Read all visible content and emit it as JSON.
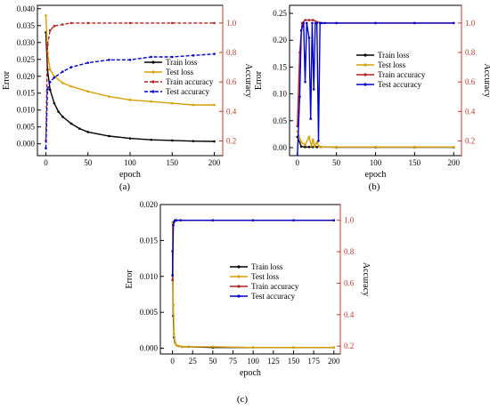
{
  "chart_data": [
    {
      "type": "line",
      "panel_label": "(a)",
      "xlabel": "epoch",
      "ylabel": "Error",
      "y2label": "Accuracy",
      "xlim": [
        -10,
        210
      ],
      "ylim": [
        -0.0035,
        0.041
      ],
      "y2lim": [
        0.1,
        1.12
      ],
      "xticks": [
        0,
        50,
        100,
        150,
        200
      ],
      "yticks": [
        0.0,
        0.005,
        0.01,
        0.015,
        0.02,
        0.025,
        0.03,
        0.035,
        0.04
      ],
      "ytick_labels": [
        "0.000",
        "0.005",
        "0.010",
        "0.015",
        "0.020",
        "0.025",
        "0.030",
        "0.035",
        "0.040"
      ],
      "y2ticks": [
        0.2,
        0.4,
        0.6,
        0.8,
        1.0
      ],
      "y2tick_labels": [
        "0.2",
        "0.4",
        "0.6",
        "0.8",
        "1.0"
      ],
      "legend_position": "right",
      "series": [
        {
          "name": "Train loss",
          "axis": "left",
          "color": "#000000",
          "style": "solid",
          "x": [
            0,
            2,
            5,
            10,
            15,
            20,
            30,
            40,
            50,
            75,
            100,
            125,
            150,
            175,
            200
          ],
          "y": [
            0.033,
            0.022,
            0.016,
            0.012,
            0.0095,
            0.008,
            0.006,
            0.0045,
            0.0035,
            0.0023,
            0.0016,
            0.0012,
            0.001,
            0.0008,
            0.0007
          ]
        },
        {
          "name": "Test loss",
          "axis": "left",
          "color": "#d4a000",
          "style": "solid",
          "x": [
            0,
            2,
            5,
            10,
            20,
            30,
            50,
            75,
            100,
            125,
            150,
            175,
            200
          ],
          "y": [
            0.038,
            0.027,
            0.022,
            0.02,
            0.018,
            0.017,
            0.0155,
            0.014,
            0.013,
            0.0125,
            0.012,
            0.0115,
            0.0115
          ]
        },
        {
          "name": "Train accuracy",
          "axis": "right",
          "color": "#b22222",
          "style": "dashed",
          "x": [
            0,
            2,
            5,
            10,
            20,
            30,
            50,
            100,
            150,
            200
          ],
          "y": [
            0.2,
            0.85,
            0.95,
            0.98,
            0.99,
            1.0,
            1.0,
            1.0,
            1.0,
            1.0
          ]
        },
        {
          "name": "Test accuracy",
          "axis": "right",
          "color": "#0000cc",
          "style": "dashed",
          "x": [
            0,
            2,
            5,
            10,
            20,
            30,
            50,
            75,
            100,
            125,
            150,
            175,
            200
          ],
          "y": [
            0.15,
            0.55,
            0.6,
            0.63,
            0.67,
            0.7,
            0.73,
            0.75,
            0.75,
            0.77,
            0.77,
            0.78,
            0.79
          ]
        }
      ]
    },
    {
      "type": "line",
      "panel_label": "(b)",
      "xlabel": "epoch",
      "ylabel": "Error",
      "y2label": "Accuracy",
      "xlim": [
        -10,
        210
      ],
      "ylim": [
        -0.015,
        0.265
      ],
      "y2lim": [
        0.1,
        1.12
      ],
      "xticks": [
        0,
        50,
        100,
        150,
        200
      ],
      "yticks": [
        0.0,
        0.05,
        0.1,
        0.15,
        0.2,
        0.25
      ],
      "ytick_labels": [
        "0.00",
        "0.05",
        "0.10",
        "0.15",
        "0.20",
        "0.25"
      ],
      "y2ticks": [
        0.2,
        0.4,
        0.6,
        0.8,
        1.0
      ],
      "y2tick_labels": [
        "0.2",
        "0.4",
        "0.6",
        "0.8",
        "1.0"
      ],
      "legend_position": "center",
      "series": [
        {
          "name": "Train loss",
          "axis": "left",
          "color": "#000000",
          "style": "solid",
          "x": [
            0,
            5,
            10,
            15,
            20,
            25,
            30,
            50,
            100,
            150,
            200
          ],
          "y": [
            0.02,
            0.002,
            0.001,
            0.001,
            0.001,
            0.001,
            0.001,
            0.0005,
            0.0005,
            0.0005,
            0.0005
          ]
        },
        {
          "name": "Test loss",
          "axis": "left",
          "color": "#d4a000",
          "style": "solid",
          "x": [
            0,
            5,
            10,
            15,
            18,
            20,
            22,
            25,
            28,
            30,
            50,
            100,
            150,
            200
          ],
          "y": [
            0.03,
            0.01,
            0.005,
            0.02,
            0.003,
            0.015,
            0.002,
            0.01,
            0.002,
            0.001,
            0.001,
            0.001,
            0.001,
            0.001
          ]
        },
        {
          "name": "Train accuracy",
          "axis": "right",
          "color": "#b22222",
          "style": "solid",
          "x": [
            0,
            3,
            6,
            10,
            15,
            20,
            30,
            50,
            100,
            150,
            200
          ],
          "y": [
            0.3,
            0.8,
            1.0,
            1.02,
            1.02,
            1.02,
            1.0,
            1.0,
            1.0,
            1.0,
            1.0
          ]
        },
        {
          "name": "Test accuracy",
          "axis": "right",
          "color": "#0000cc",
          "style": "solid",
          "x": [
            0,
            3,
            5,
            8,
            10,
            12,
            15,
            17,
            19,
            21,
            23,
            25,
            27,
            29,
            31,
            35,
            50,
            100,
            150,
            200
          ],
          "y": [
            0.1,
            0.5,
            0.95,
            1.0,
            0.6,
            1.0,
            0.9,
            0.35,
            1.0,
            0.55,
            1.0,
            1.0,
            0.2,
            1.0,
            1.0,
            1.0,
            1.0,
            1.0,
            1.0,
            1.0
          ]
        }
      ]
    },
    {
      "type": "line",
      "panel_label": "(c)",
      "xlabel": "epoch",
      "ylabel": "Error",
      "y2label": "Accuracy",
      "xlim": [
        -15,
        208
      ],
      "ylim": [
        -0.0008,
        0.02
      ],
      "y2lim": [
        0.15,
        1.1
      ],
      "xticks": [
        0,
        25,
        50,
        75,
        100,
        125,
        150,
        175,
        200
      ],
      "yticks": [
        0.0,
        0.005,
        0.01,
        0.015,
        0.02
      ],
      "ytick_labels": [
        "0.000",
        "0.005",
        "0.010",
        "0.015",
        "0.020"
      ],
      "y2ticks": [
        0.2,
        0.4,
        0.6,
        0.8,
        1.0
      ],
      "y2tick_labels": [
        "0.2",
        "0.4",
        "0.6",
        "0.8",
        "1.0"
      ],
      "legend_position": "center",
      "series": [
        {
          "name": "Train loss",
          "axis": "left",
          "color": "#000000",
          "style": "solid",
          "x": [
            0,
            1,
            2,
            3,
            5,
            8,
            12,
            20,
            50,
            100,
            150,
            200
          ],
          "y": [
            0.0135,
            0.0045,
            0.0015,
            0.0008,
            0.0004,
            0.0003,
            0.0002,
            0.0002,
            0.0001,
            0.0001,
            0.0001,
            0.0001
          ]
        },
        {
          "name": "Test loss",
          "axis": "left",
          "color": "#d4a000",
          "style": "solid",
          "x": [
            0,
            1,
            2,
            3,
            5,
            8,
            12,
            20,
            50,
            100,
            150,
            200
          ],
          "y": [
            0.0175,
            0.006,
            0.002,
            0.0008,
            0.0004,
            0.0003,
            0.0002,
            0.0002,
            0.0002,
            0.0001,
            0.0001,
            0.0001
          ]
        },
        {
          "name": "Train accuracy",
          "axis": "right",
          "color": "#b22222",
          "style": "solid",
          "x": [
            0,
            1,
            2,
            3,
            5,
            10,
            50,
            100,
            150,
            200
          ],
          "y": [
            0.62,
            0.97,
            0.99,
            1.0,
            1.0,
            1.0,
            1.0,
            1.0,
            1.0,
            1.0
          ]
        },
        {
          "name": "Test accuracy",
          "axis": "right",
          "color": "#0000cc",
          "style": "solid",
          "x": [
            0,
            1,
            2,
            3,
            5,
            10,
            50,
            100,
            150,
            200
          ],
          "y": [
            0.65,
            0.97,
            0.99,
            1.0,
            1.0,
            1.0,
            1.0,
            1.0,
            1.0,
            1.0
          ]
        }
      ]
    }
  ]
}
